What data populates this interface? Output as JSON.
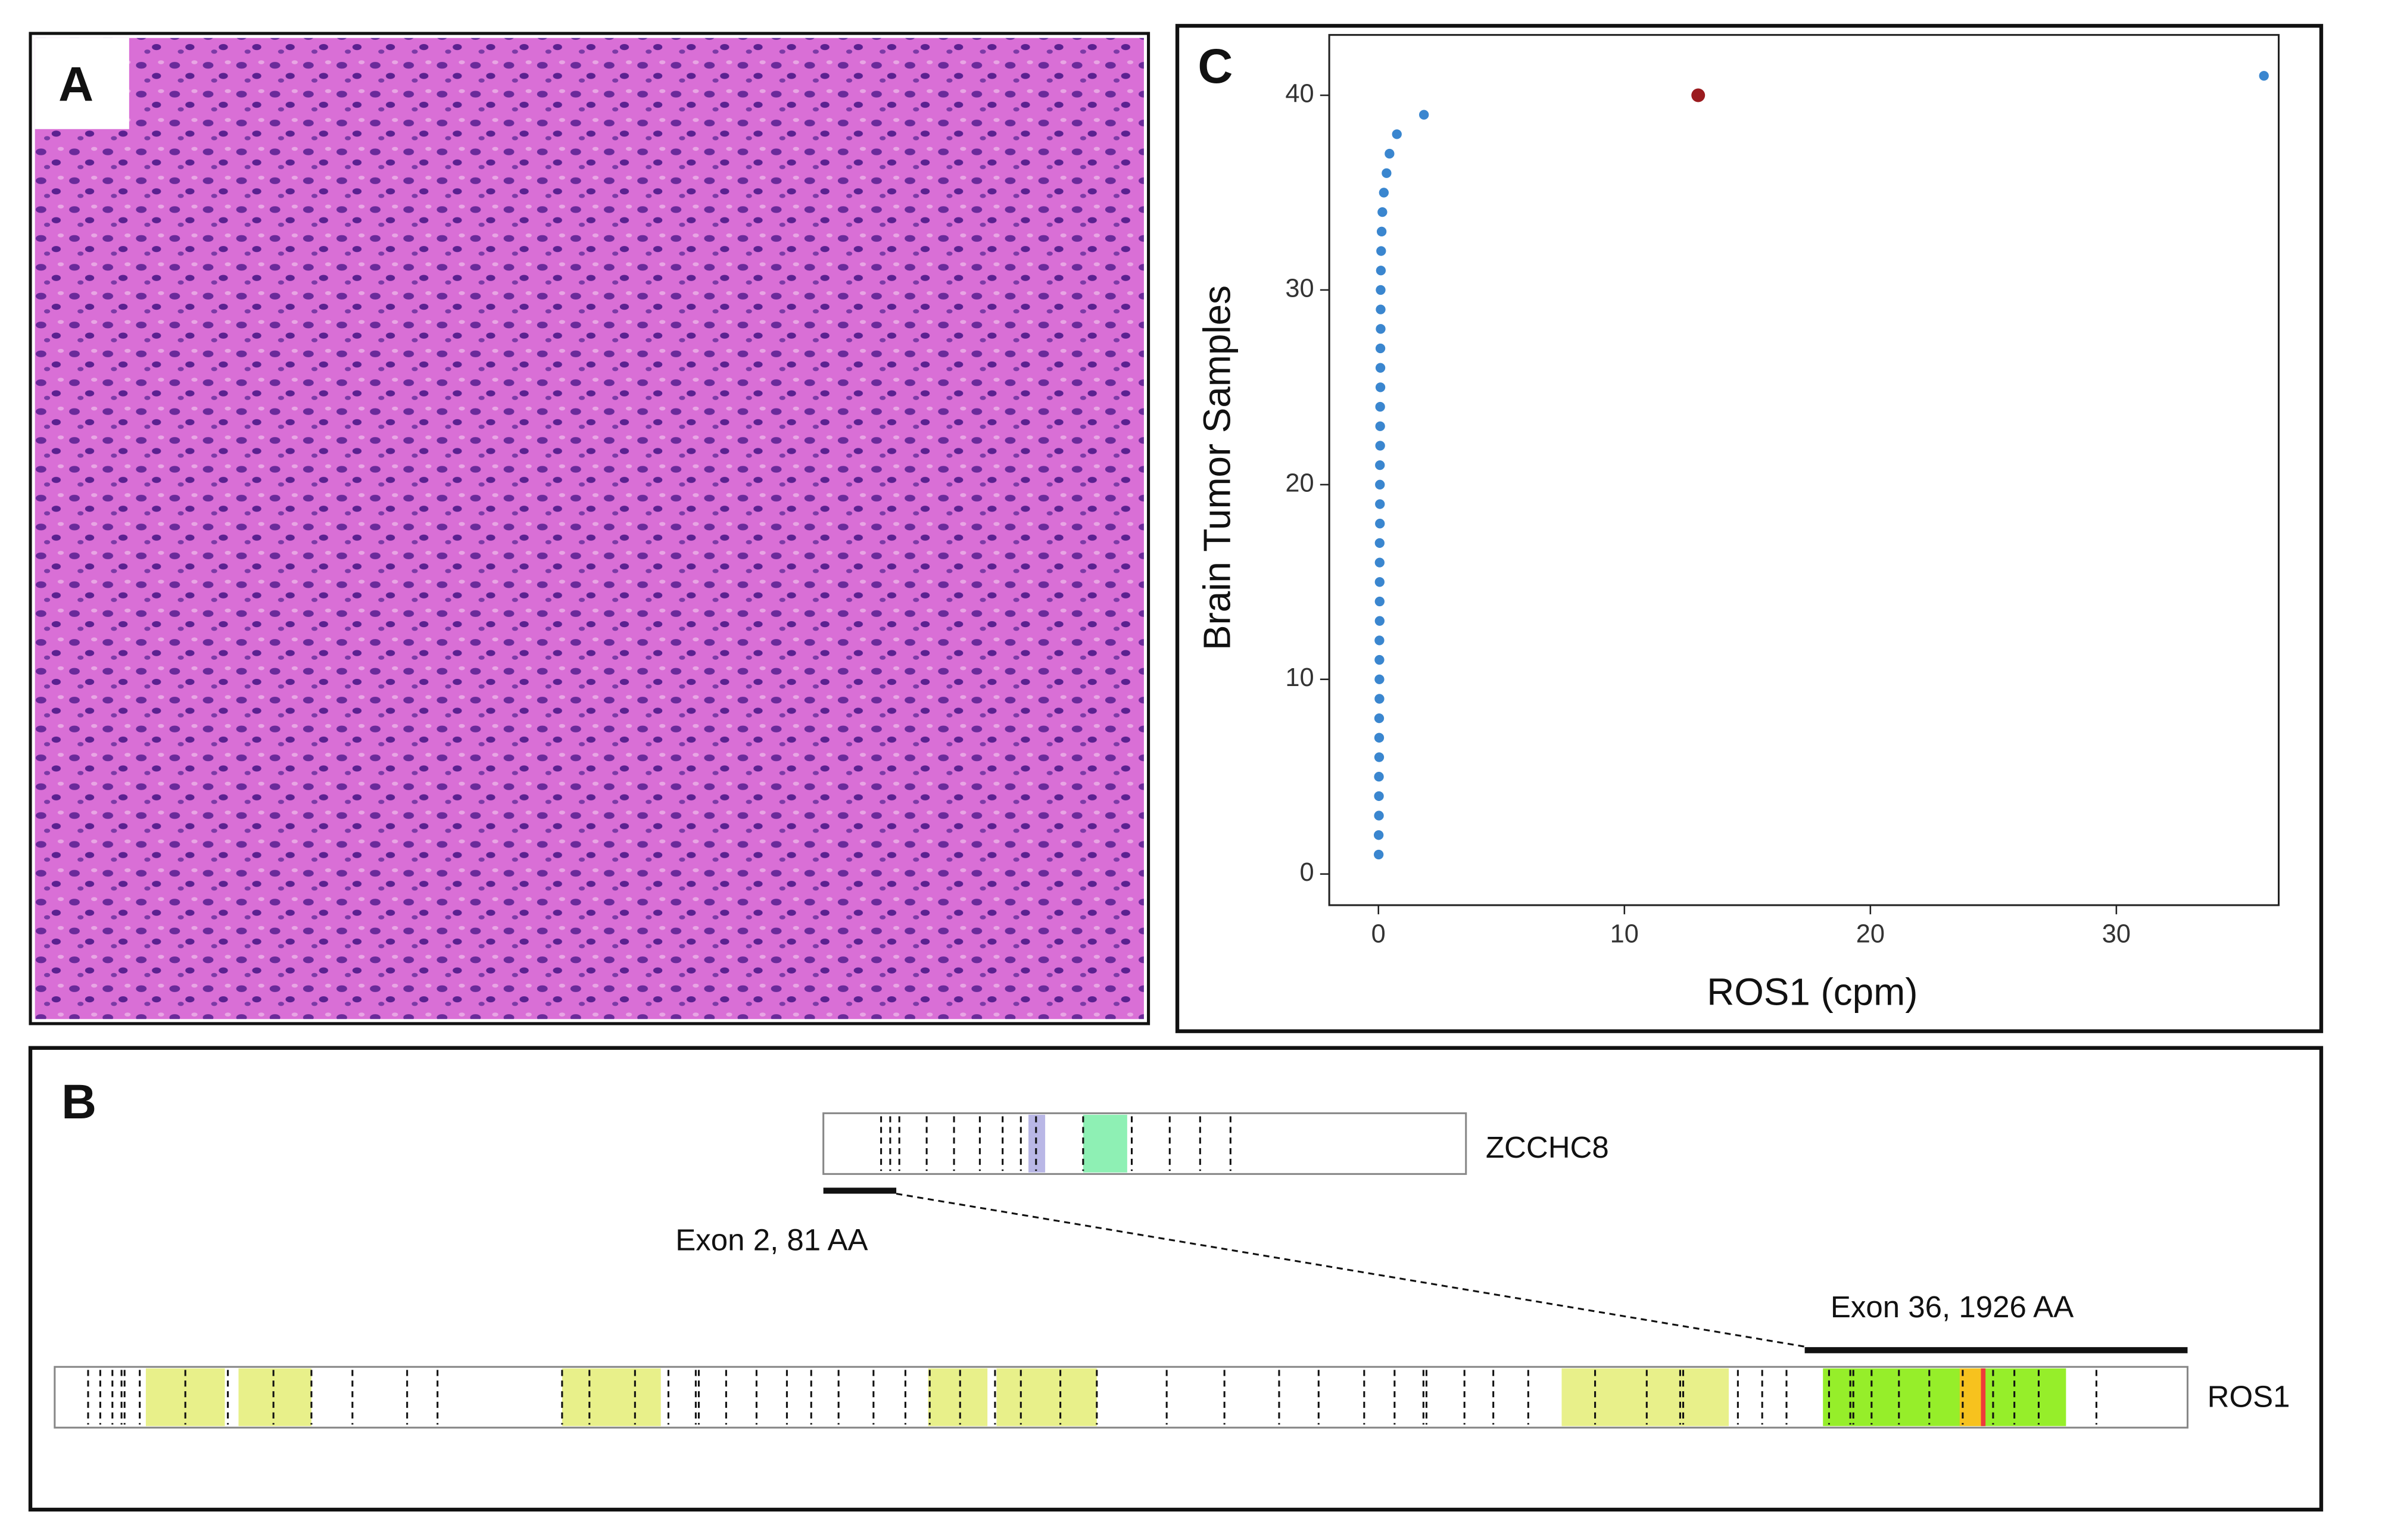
{
  "panels": {
    "a": {
      "label": "A"
    },
    "b": {
      "label": "B",
      "genes": [
        "ZCCHC8",
        "ROS1"
      ],
      "exons": [
        "Exon 2, 81 AA",
        "Exon 36, 1926 AA"
      ]
    },
    "c": {
      "label": "C"
    }
  },
  "chart_data": {
    "type": "scatter",
    "x_label": "ROS1 (cpm)",
    "y_label": "Brain Tumor Samples",
    "xlim": [
      -2,
      36.6
    ],
    "ylim": [
      -1.6,
      43.1
    ],
    "xticks": [
      0,
      10,
      20,
      30
    ],
    "yticks": [
      0,
      10,
      20,
      30,
      40
    ],
    "series": [
      {
        "color": "#3a86cf",
        "x": [
          0.01,
          0.01,
          0.02,
          0.02,
          0.02,
          0.03,
          0.03,
          0.03,
          0.04,
          0.04,
          0.04,
          0.04,
          0.05,
          0.05,
          0.05,
          0.05,
          0.05,
          0.06,
          0.06,
          0.06,
          0.06,
          0.07,
          0.07,
          0.07,
          0.08,
          0.08,
          0.08,
          0.09,
          0.09,
          0.09,
          0.1,
          0.11,
          0.13,
          0.16,
          0.22,
          0.33,
          0.45,
          0.75,
          1.85,
          36
        ],
        "values": [
          1,
          2,
          3,
          4,
          5,
          6,
          7,
          8,
          9,
          10,
          11,
          12,
          13,
          14,
          15,
          16,
          17,
          18,
          19,
          20,
          21,
          22,
          23,
          24,
          25,
          26,
          27,
          28,
          29,
          30,
          31,
          32,
          33,
          34,
          35,
          36,
          37,
          38,
          39,
          41
        ]
      },
      {
        "color": "#9b1b1f",
        "x": [
          13
        ],
        "values": [
          40
        ]
      }
    ]
  }
}
